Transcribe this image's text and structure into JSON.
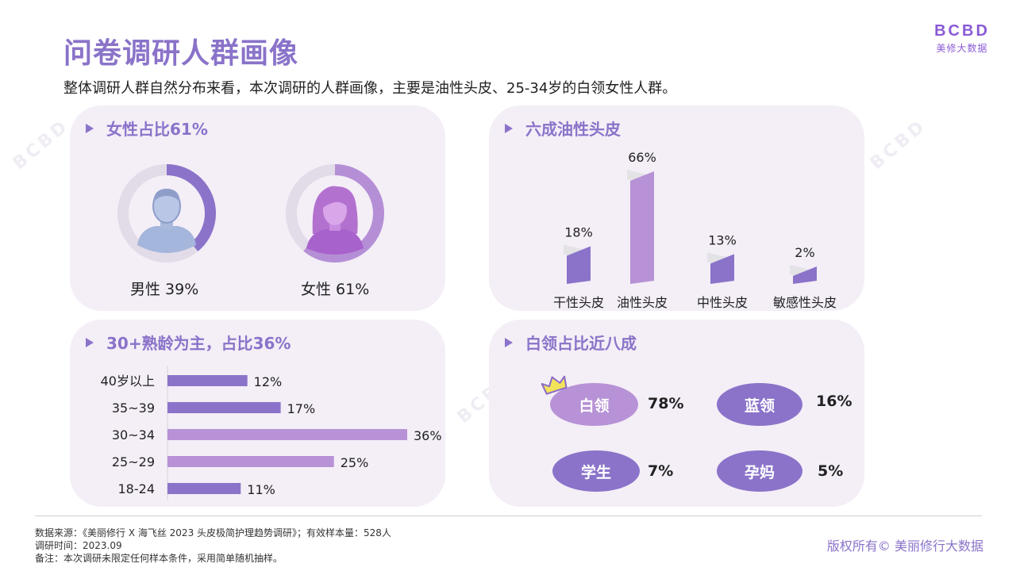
{
  "header": {
    "title": "问卷调研人群画像",
    "subtitle": "整体调研人群自然分布来看，本次调研的人群画像，主要是油性头皮、25-34岁的白领女性人群。"
  },
  "logo": {
    "mark": "BCBD",
    "text": "美修大数据"
  },
  "panels": {
    "gender": {
      "title": "女性占比61%"
    },
    "scalp": {
      "title": "六成油性头皮"
    },
    "age": {
      "title": "30+熟龄为主，占比36%"
    },
    "job": {
      "title": "白领占比近八成"
    }
  },
  "chart_data": [
    {
      "type": "pie",
      "title": "女性占比61%",
      "slices": [
        {
          "label": "男性",
          "value": 39,
          "display": "男性  39%",
          "color": "#8a73c9"
        },
        {
          "label": "女性",
          "value": 61,
          "display": "女性  61%",
          "color": "#b58fd6"
        }
      ]
    },
    {
      "type": "bar",
      "title": "六成油性头皮",
      "categories": [
        "干性头皮",
        "油性头皮",
        "中性头皮",
        "敏感性头皮"
      ],
      "values": [
        18,
        66,
        13,
        2
      ],
      "value_labels": [
        "18%",
        "66%",
        "13%",
        "2%"
      ],
      "colors": [
        "#8a73c9",
        "#b792d6",
        "#8a73c9",
        "#8a73c9"
      ]
    },
    {
      "type": "bar",
      "orientation": "horizontal",
      "title": "30+熟龄为主，占比36%",
      "categories": [
        "40岁以上",
        "35~39",
        "30~34",
        "25~29",
        "18-24"
      ],
      "values": [
        12,
        17,
        36,
        25,
        11
      ],
      "value_labels": [
        "12%",
        "17%",
        "36%",
        "25%",
        "11%"
      ],
      "colors": [
        "#8a73c9",
        "#8a73c9",
        "#b792d6",
        "#b792d6",
        "#8a73c9"
      ]
    },
    {
      "type": "bar",
      "title": "白领占比近八成",
      "categories": [
        "白领",
        "蓝领",
        "学生",
        "孕妈"
      ],
      "values": [
        78,
        16,
        7,
        5
      ],
      "value_labels": [
        "78%",
        "16%",
        "7%",
        "5%"
      ],
      "colors": [
        "#b792d6",
        "#8a73c9",
        "#8a73c9",
        "#8a73c9"
      ]
    }
  ],
  "footer": {
    "source": "数据来源：《美丽修行 X 海飞丝 2023 头皮极简护理趋势调研》；有效样本量：528人",
    "time": "调研时间：2023.09",
    "note": "备注：本次调研未限定任何样本条件，采用简单随机抽样。",
    "copyright": "版权所有© 美丽修行大数据"
  },
  "watermark": {
    "mark": "BCBD",
    "text": "美修大数据"
  },
  "icons": [
    "arrow-right-icon",
    "male-avatar-icon",
    "female-avatar-icon",
    "crown-icon"
  ]
}
